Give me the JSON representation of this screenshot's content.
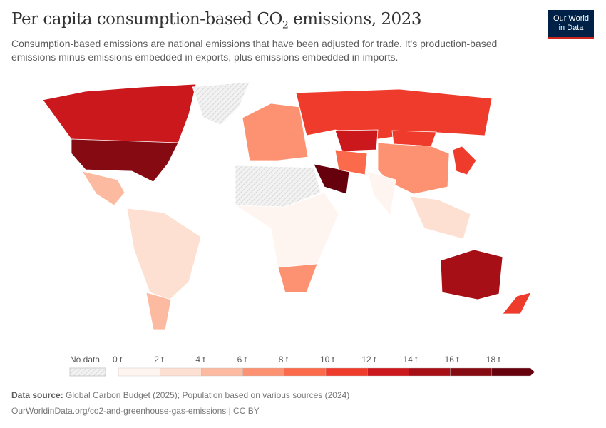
{
  "header": {
    "title_prefix": "Per capita consumption-based CO",
    "title_sub": "2",
    "title_suffix": " emissions, 2023",
    "subtitle": "Consumption-based emissions are national emissions that have been adjusted for trade. It's production-based emissions minus emissions embedded in exports, plus emissions embedded in imports.",
    "logo_line1": "Our World",
    "logo_line2": "in Data"
  },
  "legend": {
    "no_data_label": "No data",
    "no_data_color": "#e6e6e6",
    "ticks": [
      "0 t",
      "2 t",
      "4 t",
      "6 t",
      "8 t",
      "10 t",
      "12 t",
      "14 t",
      "16 t",
      "18 t"
    ],
    "bin_colors": [
      "#fff5f0",
      "#fee0d2",
      "#fcbba1",
      "#fc9272",
      "#fb6a4a",
      "#ef3b2c",
      "#cb181d",
      "#a50f15",
      "#850a11",
      "#67000d"
    ]
  },
  "map_data": {
    "unit": "t",
    "regions": [
      {
        "name": "Canada",
        "value": 13
      },
      {
        "name": "United States",
        "value": 16
      },
      {
        "name": "Greenland",
        "value": null
      },
      {
        "name": "Mexico",
        "value": 4
      },
      {
        "name": "South America",
        "value": 2.5
      },
      {
        "name": "Argentina/Chile",
        "value": 4.5
      },
      {
        "name": "Europe",
        "value": 7
      },
      {
        "name": "Russia",
        "value": 11
      },
      {
        "name": "Kazakhstan",
        "value": 12.5
      },
      {
        "name": "Mongolia",
        "value": 11
      },
      {
        "name": "China",
        "value": 7
      },
      {
        "name": "India",
        "value": 1.8
      },
      {
        "name": "Saudi Arabia",
        "value": 19
      },
      {
        "name": "Iran",
        "value": 8
      },
      {
        "name": "North Africa",
        "value": null
      },
      {
        "name": "Sub-Saharan Africa",
        "value": 1
      },
      {
        "name": "South Africa",
        "value": 6
      },
      {
        "name": "Japan/Korea",
        "value": 10.5
      },
      {
        "name": "Southeast Asia",
        "value": 3
      },
      {
        "name": "Australia",
        "value": 15
      },
      {
        "name": "New Zealand",
        "value": 10
      }
    ]
  },
  "footer": {
    "source_label": "Data source:",
    "source_text": " Global Carbon Budget (2025); Population based on various sources (2024)",
    "url_text": "OurWorldinData.org/co2-and-greenhouse-gas-emissions | CC BY"
  }
}
